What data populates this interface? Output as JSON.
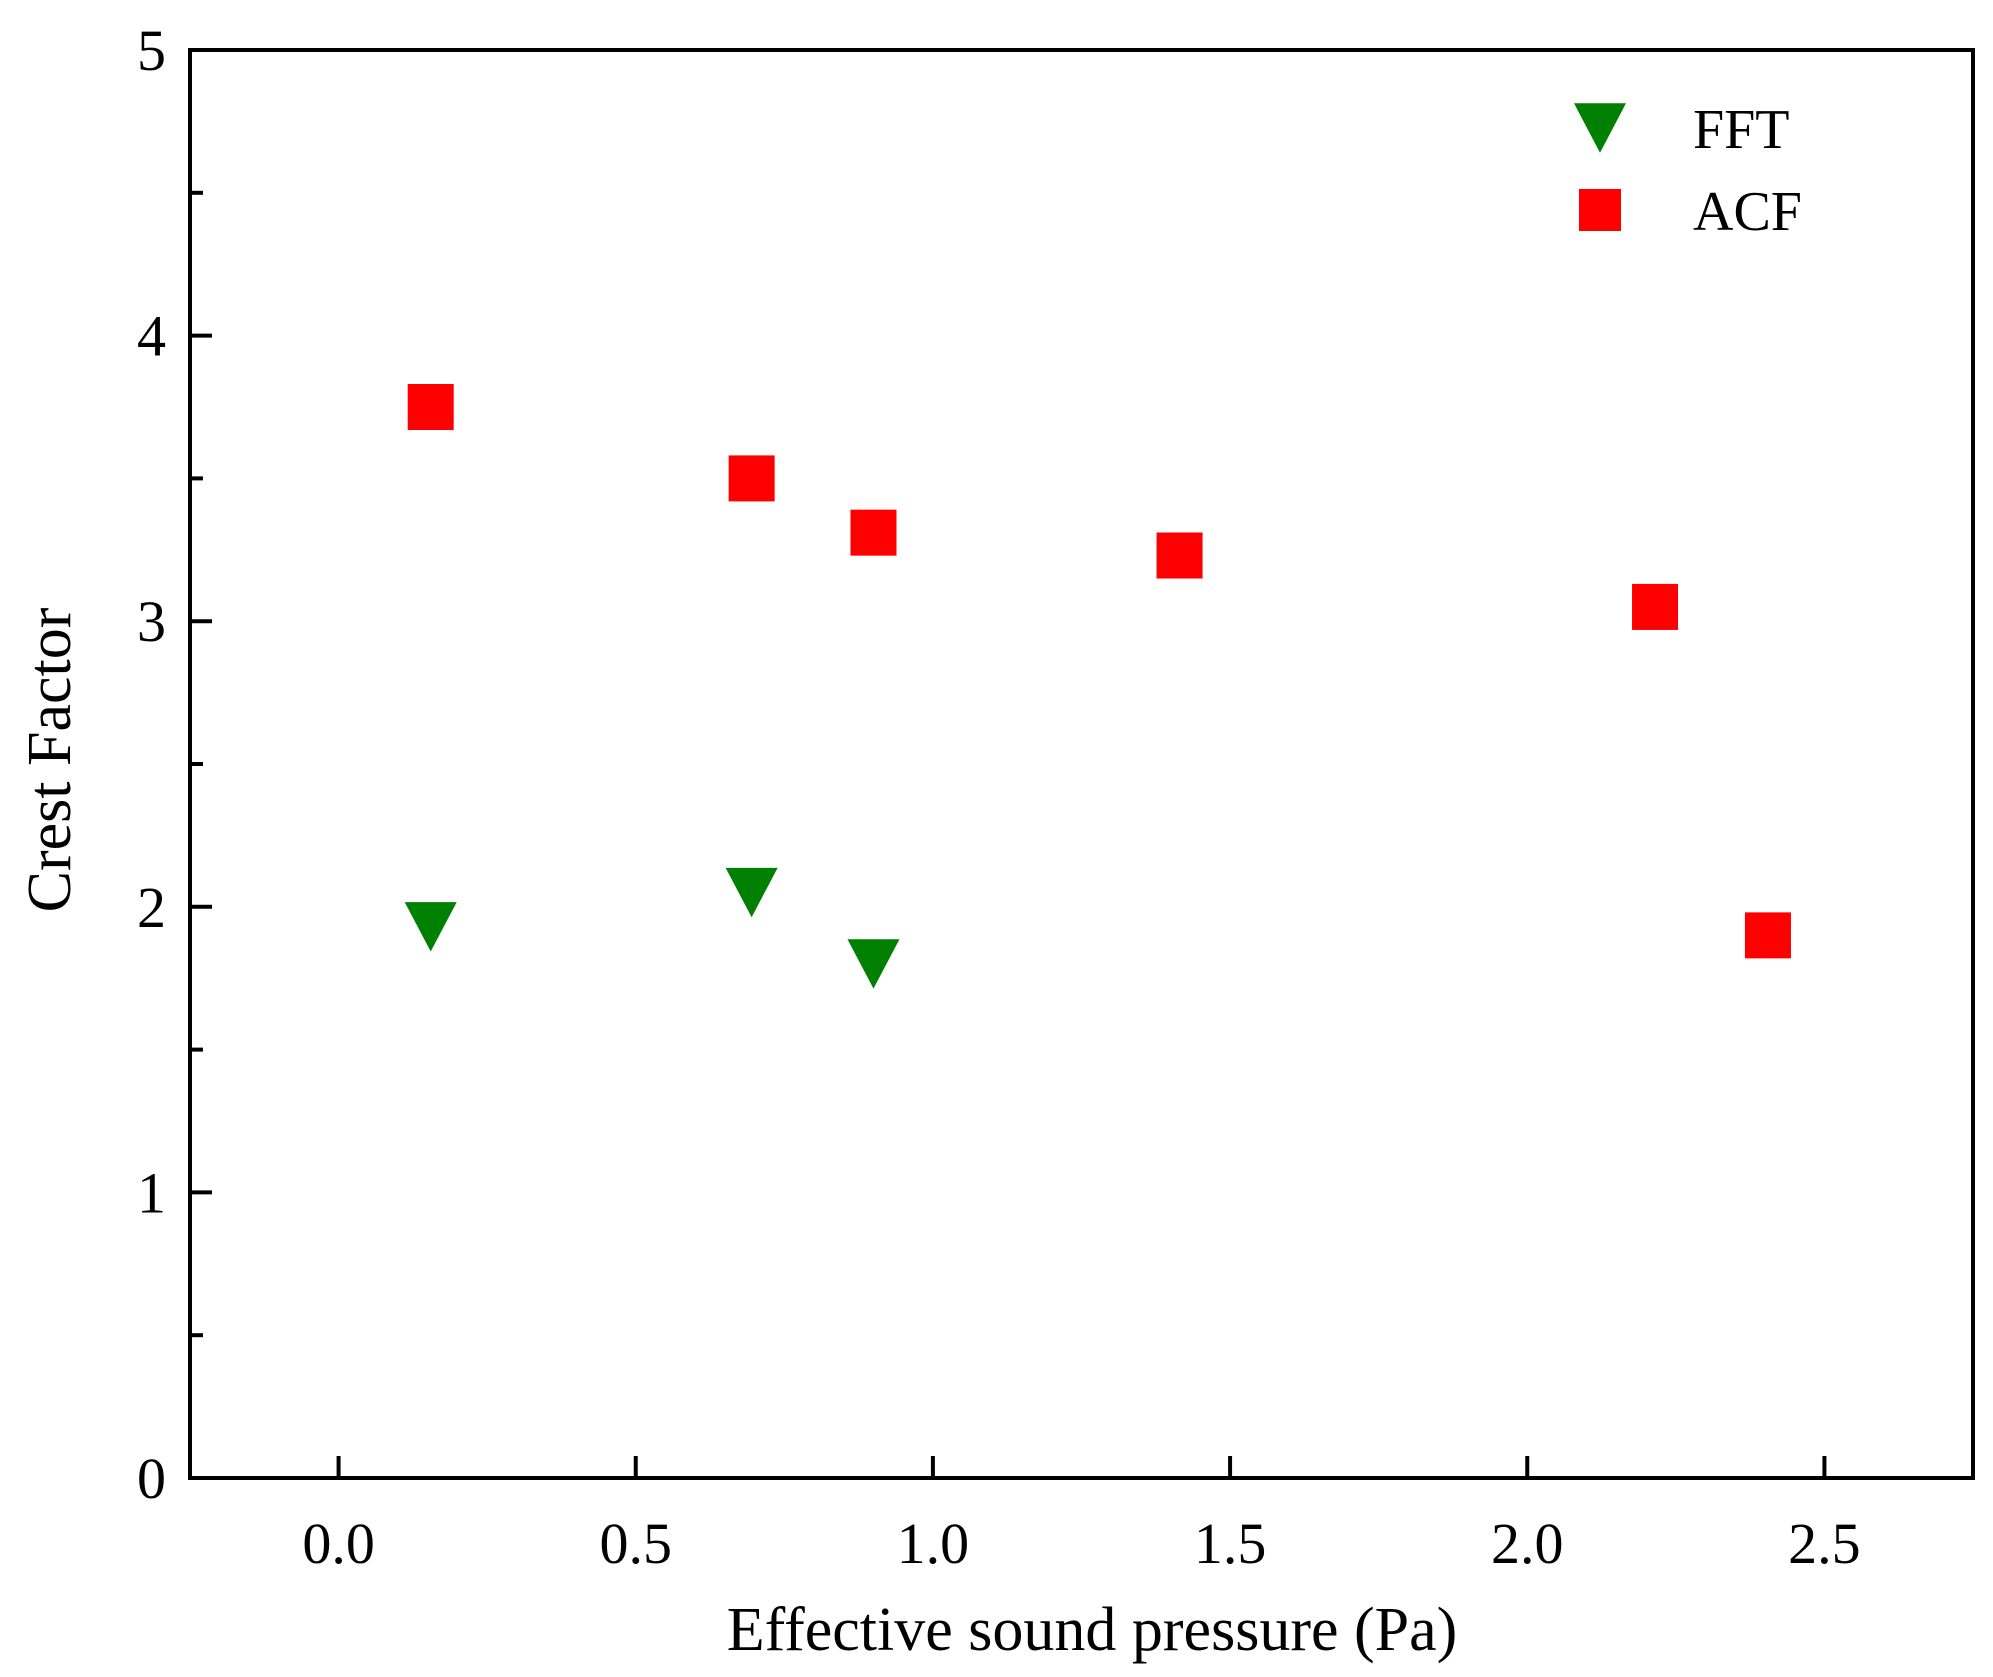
{
  "chart_data": {
    "type": "scatter",
    "title": "",
    "xlabel": "Effective sound pressure (Pa)",
    "ylabel": "Crest Factor",
    "xlim": [
      -0.25,
      2.75
    ],
    "ylim": [
      0,
      5
    ],
    "x_ticks": [
      0.0,
      0.5,
      1.0,
      1.5,
      2.0,
      2.5
    ],
    "x_tick_labels": [
      "0.0",
      "0.5",
      "1.0",
      "1.5",
      "2.0",
      "2.5"
    ],
    "y_ticks": [
      0,
      1,
      2,
      3,
      4,
      5
    ],
    "y_tick_labels": [
      "0",
      "1",
      "2",
      "3",
      "4",
      "5"
    ],
    "y_minor_ticks": [
      0.5,
      1.5,
      2.5,
      3.5,
      4.5
    ],
    "grid": false,
    "legend_position": "top-right",
    "series": [
      {
        "name": "FFT",
        "marker": "triangle-down",
        "color": "#008000",
        "x": [
          0.155,
          0.695,
          0.9
        ],
        "y": [
          1.93,
          2.05,
          1.8
        ]
      },
      {
        "name": "ACF",
        "marker": "square",
        "color": "#ff0000",
        "x": [
          0.155,
          0.695,
          0.9,
          1.415,
          2.215,
          2.405
        ],
        "y": [
          3.75,
          3.5,
          3.31,
          3.23,
          3.05,
          1.9
        ]
      }
    ]
  }
}
